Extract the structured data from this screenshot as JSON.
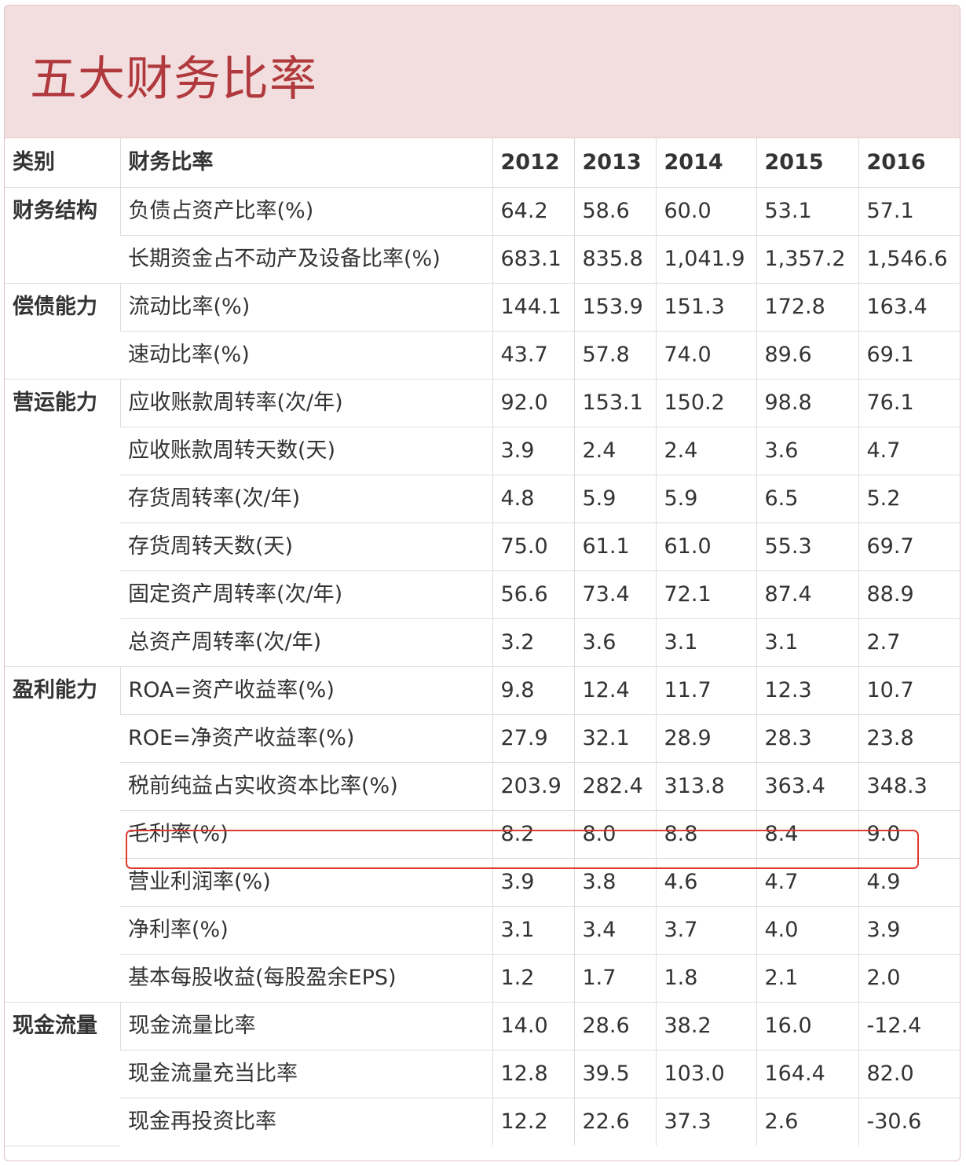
{
  "title": "五大财务比率",
  "columns": {
    "category": "类别",
    "ratio": "财务比率",
    "years": [
      "2012",
      "2013",
      "2014",
      "2015",
      "2016"
    ]
  },
  "groups": [
    {
      "category": "财务结构",
      "rows": [
        {
          "name": "负债占资产比率(%)",
          "values": [
            "64.2",
            "58.6",
            "60.0",
            "53.1",
            "57.1"
          ]
        },
        {
          "name": "长期资金占不动产及设备比率(%)",
          "values": [
            "683.1",
            "835.8",
            "1,041.9",
            "1,357.2",
            "1,546.6"
          ]
        }
      ]
    },
    {
      "category": "偿债能力",
      "rows": [
        {
          "name": "流动比率(%)",
          "values": [
            "144.1",
            "153.9",
            "151.3",
            "172.8",
            "163.4"
          ]
        },
        {
          "name": "速动比率(%)",
          "values": [
            "43.7",
            "57.8",
            "74.0",
            "89.6",
            "69.1"
          ]
        }
      ]
    },
    {
      "category": "营运能力",
      "rows": [
        {
          "name": "应收账款周转率(次/年)",
          "values": [
            "92.0",
            "153.1",
            "150.2",
            "98.8",
            "76.1"
          ]
        },
        {
          "name": "应收账款周转天数(天)",
          "values": [
            "3.9",
            "2.4",
            "2.4",
            "3.6",
            "4.7"
          ]
        },
        {
          "name": "存货周转率(次/年)",
          "values": [
            "4.8",
            "5.9",
            "5.9",
            "6.5",
            "5.2"
          ]
        },
        {
          "name": "存货周转天数(天)",
          "values": [
            "75.0",
            "61.1",
            "61.0",
            "55.3",
            "69.7"
          ]
        },
        {
          "name": "固定资产周转率(次/年)",
          "values": [
            "56.6",
            "73.4",
            "72.1",
            "87.4",
            "88.9"
          ]
        },
        {
          "name": "总资产周转率(次/年)",
          "values": [
            "3.2",
            "3.6",
            "3.1",
            "3.1",
            "2.7"
          ]
        }
      ]
    },
    {
      "category": "盈利能力",
      "rows": [
        {
          "name": "ROA=资产收益率(%)",
          "values": [
            "9.8",
            "12.4",
            "11.7",
            "12.3",
            "10.7"
          ]
        },
        {
          "name": "ROE=净资产收益率(%)",
          "values": [
            "27.9",
            "32.1",
            "28.9",
            "28.3",
            "23.8"
          ]
        },
        {
          "name": "税前纯益占实收资本比率(%)",
          "values": [
            "203.9",
            "282.4",
            "313.8",
            "363.4",
            "348.3"
          ]
        },
        {
          "name": "毛利率(%)",
          "values": [
            "8.2",
            "8.0",
            "8.8",
            "8.4",
            "9.0"
          ],
          "highlighted": true
        },
        {
          "name": "营业利润率(%)",
          "values": [
            "3.9",
            "3.8",
            "4.6",
            "4.7",
            "4.9"
          ]
        },
        {
          "name": "净利率(%)",
          "values": [
            "3.1",
            "3.4",
            "3.7",
            "4.0",
            "3.9"
          ]
        },
        {
          "name": "基本每股收益(每股盈余EPS)",
          "values": [
            "1.2",
            "1.7",
            "1.8",
            "2.1",
            "2.0"
          ]
        }
      ]
    },
    {
      "category": "现金流量",
      "rows": [
        {
          "name": "现金流量比率",
          "values": [
            "14.0",
            "28.6",
            "38.2",
            "16.0",
            "-12.4"
          ]
        },
        {
          "name": "现金流量充当比率",
          "values": [
            "12.8",
            "39.5",
            "103.0",
            "164.4",
            "82.0"
          ]
        },
        {
          "name": "现金再投资比率",
          "values": [
            "12.2",
            "22.6",
            "37.3",
            "2.6",
            "-30.6"
          ]
        }
      ]
    }
  ],
  "colors": {
    "header_bg": "#f2dede",
    "title_text": "#b0393d",
    "highlight_border": "#e0392e",
    "grid_line": "#dddddd"
  }
}
